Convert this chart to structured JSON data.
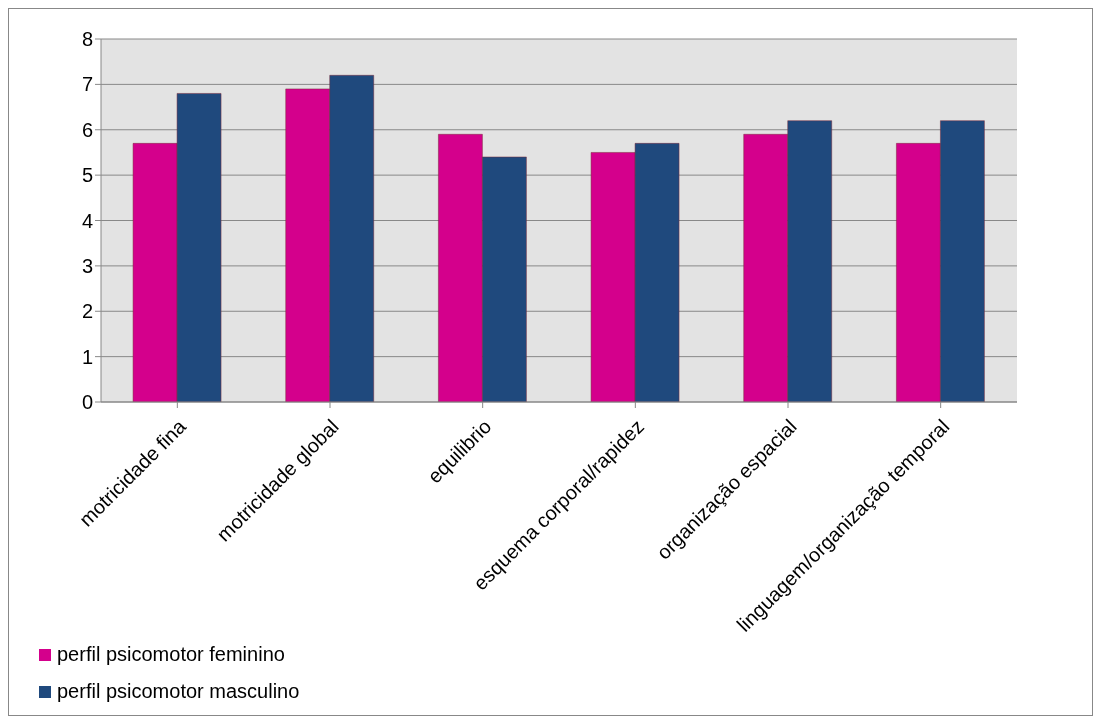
{
  "chart_data": {
    "type": "bar",
    "categories": [
      "motricidade fina",
      "motricidade global",
      "equilibrio",
      "esquema corporal/rapidez",
      "organização espacial",
      "linguagem/organização temporal"
    ],
    "series": [
      {
        "name": "perfil psicomotor feminino",
        "color": "#d4008c",
        "values": [
          5.7,
          6.9,
          5.9,
          5.5,
          5.9,
          5.7
        ]
      },
      {
        "name": "perfil psicomotor masculino",
        "color": "#1f497d",
        "values": [
          6.8,
          7.2,
          5.4,
          5.7,
          6.2,
          6.2
        ]
      }
    ],
    "ylim": [
      0,
      8
    ],
    "yticks": [
      0,
      1,
      2,
      3,
      4,
      5,
      6,
      7,
      8
    ],
    "grid": "y",
    "legend": "bottom left"
  }
}
